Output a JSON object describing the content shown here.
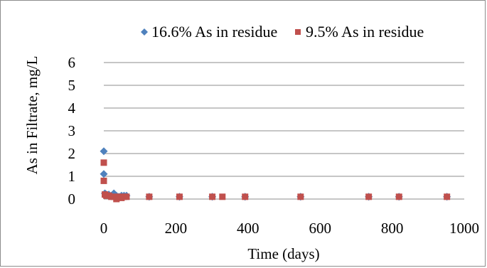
{
  "chart_data": {
    "type": "scatter",
    "xlabel": "Time (days)",
    "ylabel": "As in Filtrate, mg/L",
    "xlim": [
      0,
      1000
    ],
    "ylim": [
      0,
      6
    ],
    "x_ticks": [
      "0",
      "200",
      "400",
      "600",
      "800",
      "1000"
    ],
    "y_ticks": [
      "0",
      "1",
      "2",
      "3",
      "4",
      "5",
      "6"
    ],
    "grid": "horizontal",
    "legend_position": "top",
    "series": [
      {
        "name": "16.6% As in residue",
        "marker": "diamond",
        "color": "#4F81BD",
        "points": [
          [
            0,
            2.1
          ],
          [
            0,
            1.1
          ],
          [
            3,
            0.25
          ],
          [
            7,
            0.2
          ],
          [
            14,
            0.2
          ],
          [
            21,
            0.15
          ],
          [
            28,
            0.25
          ],
          [
            35,
            0.15
          ],
          [
            42,
            0.1
          ],
          [
            49,
            0.15
          ],
          [
            56,
            0.15
          ],
          [
            63,
            0.15
          ],
          [
            126,
            0.1
          ],
          [
            210,
            0.1
          ],
          [
            301,
            0.1
          ],
          [
            392,
            0.1
          ],
          [
            546,
            0.1
          ],
          [
            735,
            0.1
          ],
          [
            819,
            0.1
          ],
          [
            952,
            0.1
          ]
        ]
      },
      {
        "name": "9.5% As in residue",
        "marker": "square",
        "color": "#C0504D",
        "points": [
          [
            0,
            1.6
          ],
          [
            0,
            0.8
          ],
          [
            3,
            0.2
          ],
          [
            7,
            0.15
          ],
          [
            14,
            0.15
          ],
          [
            21,
            0.1
          ],
          [
            28,
            0.1
          ],
          [
            35,
            0.0
          ],
          [
            42,
            0.1
          ],
          [
            49,
            0.05
          ],
          [
            56,
            0.1
          ],
          [
            63,
            0.1
          ],
          [
            126,
            0.1
          ],
          [
            210,
            0.1
          ],
          [
            301,
            0.1
          ],
          [
            329,
            0.1
          ],
          [
            392,
            0.1
          ],
          [
            546,
            0.1
          ],
          [
            735,
            0.1
          ],
          [
            819,
            0.1
          ],
          [
            952,
            0.1
          ]
        ]
      }
    ]
  }
}
